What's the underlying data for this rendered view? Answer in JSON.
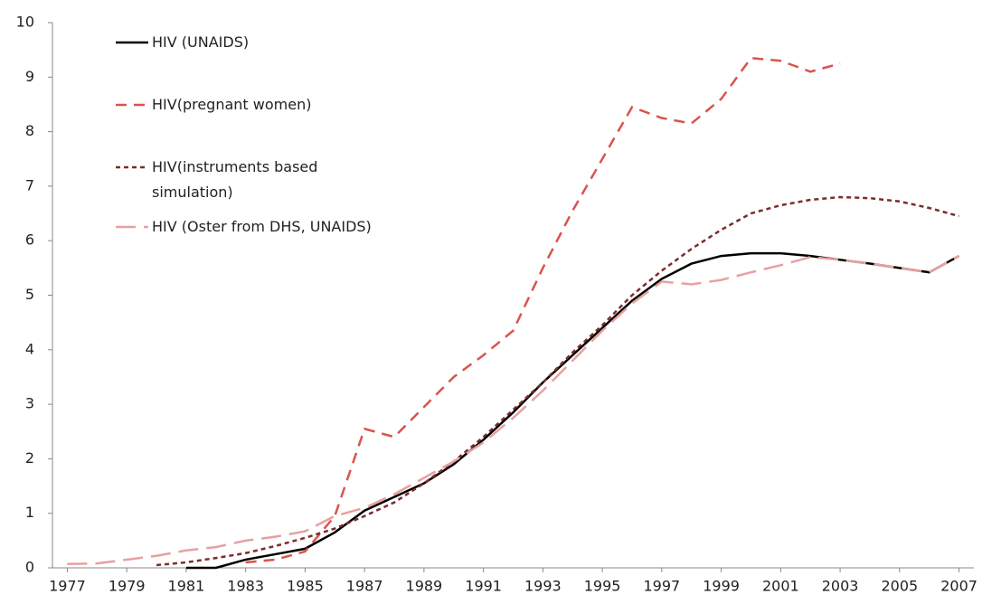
{
  "chart_data": {
    "type": "line",
    "x": [
      1977,
      1978,
      1979,
      1980,
      1981,
      1982,
      1983,
      1984,
      1985,
      1986,
      1987,
      1988,
      1989,
      1990,
      1991,
      1992,
      1993,
      1994,
      1995,
      1996,
      1997,
      1998,
      1999,
      2000,
      2001,
      2002,
      2003,
      2004,
      2005,
      2006,
      2007
    ],
    "xlim": [
      1976.5,
      2007.5
    ],
    "xticks": [
      1977,
      1979,
      1981,
      1983,
      1985,
      1987,
      1989,
      1991,
      1993,
      1995,
      1997,
      1999,
      2001,
      2003,
      2005,
      2007
    ],
    "ylim": [
      0,
      10
    ],
    "yticks": [
      0,
      1,
      2,
      3,
      4,
      5,
      6,
      7,
      8,
      9,
      10
    ],
    "series": [
      {
        "name": "HIV (UNAIDS)",
        "color": "#000000",
        "dash": "solid",
        "values": [
          null,
          null,
          null,
          null,
          0,
          0,
          0.15,
          0.25,
          0.35,
          0.65,
          1.05,
          1.3,
          1.55,
          1.9,
          2.35,
          2.85,
          3.4,
          3.9,
          4.4,
          4.9,
          5.3,
          5.58,
          5.72,
          5.77,
          5.77,
          5.72,
          5.65,
          5.58,
          5.5,
          5.42,
          5.72
        ]
      },
      {
        "name": "HIV(pregnant women)",
        "color": "#d9534f",
        "dash": "dashed",
        "values": [
          null,
          null,
          null,
          null,
          null,
          null,
          0.1,
          0.15,
          0.3,
          0.95,
          2.55,
          2.4,
          2.95,
          3.5,
          3.9,
          4.35,
          5.5,
          6.55,
          7.5,
          8.45,
          8.25,
          8.15,
          8.6,
          9.35,
          9.3,
          9.1,
          9.25,
          null,
          null,
          null,
          null
        ]
      },
      {
        "name": "HIV(instruments based simulation)",
        "color": "#7b2c2c",
        "dash": "dotted",
        "values": [
          null,
          null,
          null,
          0.05,
          0.1,
          0.18,
          0.27,
          0.4,
          0.55,
          0.72,
          0.95,
          1.2,
          1.55,
          1.95,
          2.4,
          2.9,
          3.4,
          3.95,
          4.45,
          5.0,
          5.45,
          5.85,
          6.2,
          6.5,
          6.65,
          6.75,
          6.8,
          6.78,
          6.72,
          6.6,
          6.45
        ]
      },
      {
        "name": "HIV (Oster from DHS, UNAIDS)",
        "color": "#e8a0a0",
        "dash": "long-dashed",
        "values": [
          0.07,
          0.08,
          0.15,
          0.22,
          0.32,
          0.38,
          0.5,
          0.57,
          0.67,
          0.95,
          1.1,
          1.35,
          1.65,
          1.95,
          2.3,
          2.75,
          3.25,
          3.8,
          4.35,
          4.85,
          5.25,
          5.2,
          5.28,
          5.42,
          5.55,
          5.7,
          5.65,
          5.58,
          5.5,
          5.42,
          5.72
        ]
      }
    ]
  }
}
